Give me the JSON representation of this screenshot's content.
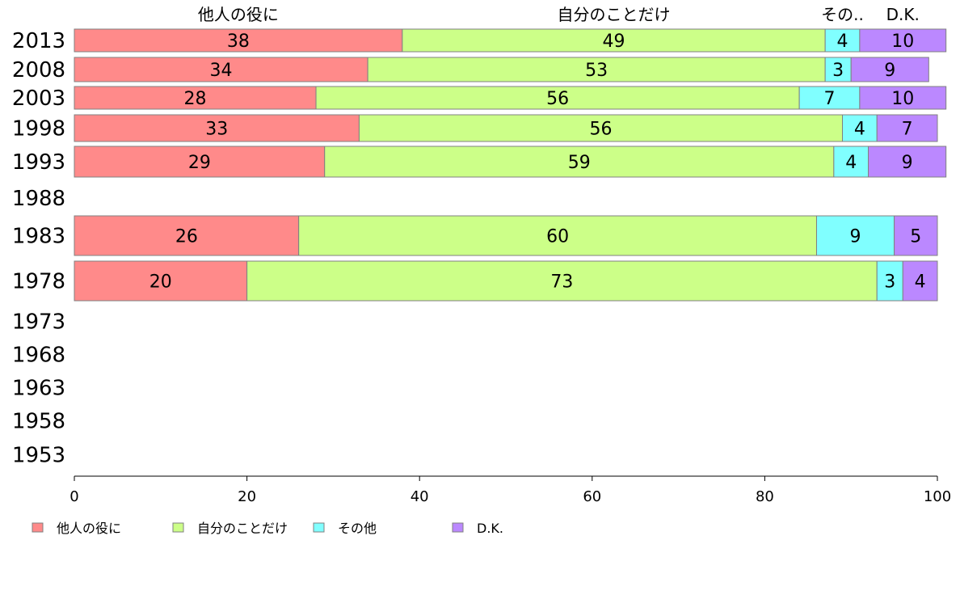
{
  "chart_data": {
    "type": "bar",
    "orientation": "horizontal",
    "stacked": true,
    "categories": [
      "2013",
      "2008",
      "2003",
      "1998",
      "1993",
      "1988",
      "1983",
      "1978",
      "1973",
      "1968",
      "1963",
      "1958",
      "1953"
    ],
    "series": [
      {
        "name": "他人の役に",
        "color": "#ff8a8a",
        "values": [
          38,
          34,
          28,
          33,
          29,
          null,
          26,
          20,
          null,
          null,
          null,
          null,
          null
        ]
      },
      {
        "name": "自分のことだけ",
        "color": "#ccff88",
        "values": [
          49,
          53,
          56,
          56,
          59,
          null,
          60,
          73,
          null,
          null,
          null,
          null,
          null
        ]
      },
      {
        "name": "その他",
        "color": "#80ffff",
        "values": [
          4,
          3,
          7,
          4,
          4,
          null,
          9,
          3,
          null,
          null,
          null,
          null,
          null
        ]
      },
      {
        "name": "D.K.",
        "color": "#bb88ff",
        "values": [
          10,
          9,
          10,
          7,
          9,
          null,
          5,
          4,
          null,
          null,
          null,
          null,
          null
        ]
      }
    ],
    "header_labels": [
      "他人の役に",
      "自分のことだけ",
      "その..",
      "D.K."
    ],
    "xlim": [
      0,
      100
    ],
    "xticks": [
      0,
      20,
      40,
      60,
      80,
      100
    ],
    "legend_position": "bottom",
    "grid": false
  }
}
